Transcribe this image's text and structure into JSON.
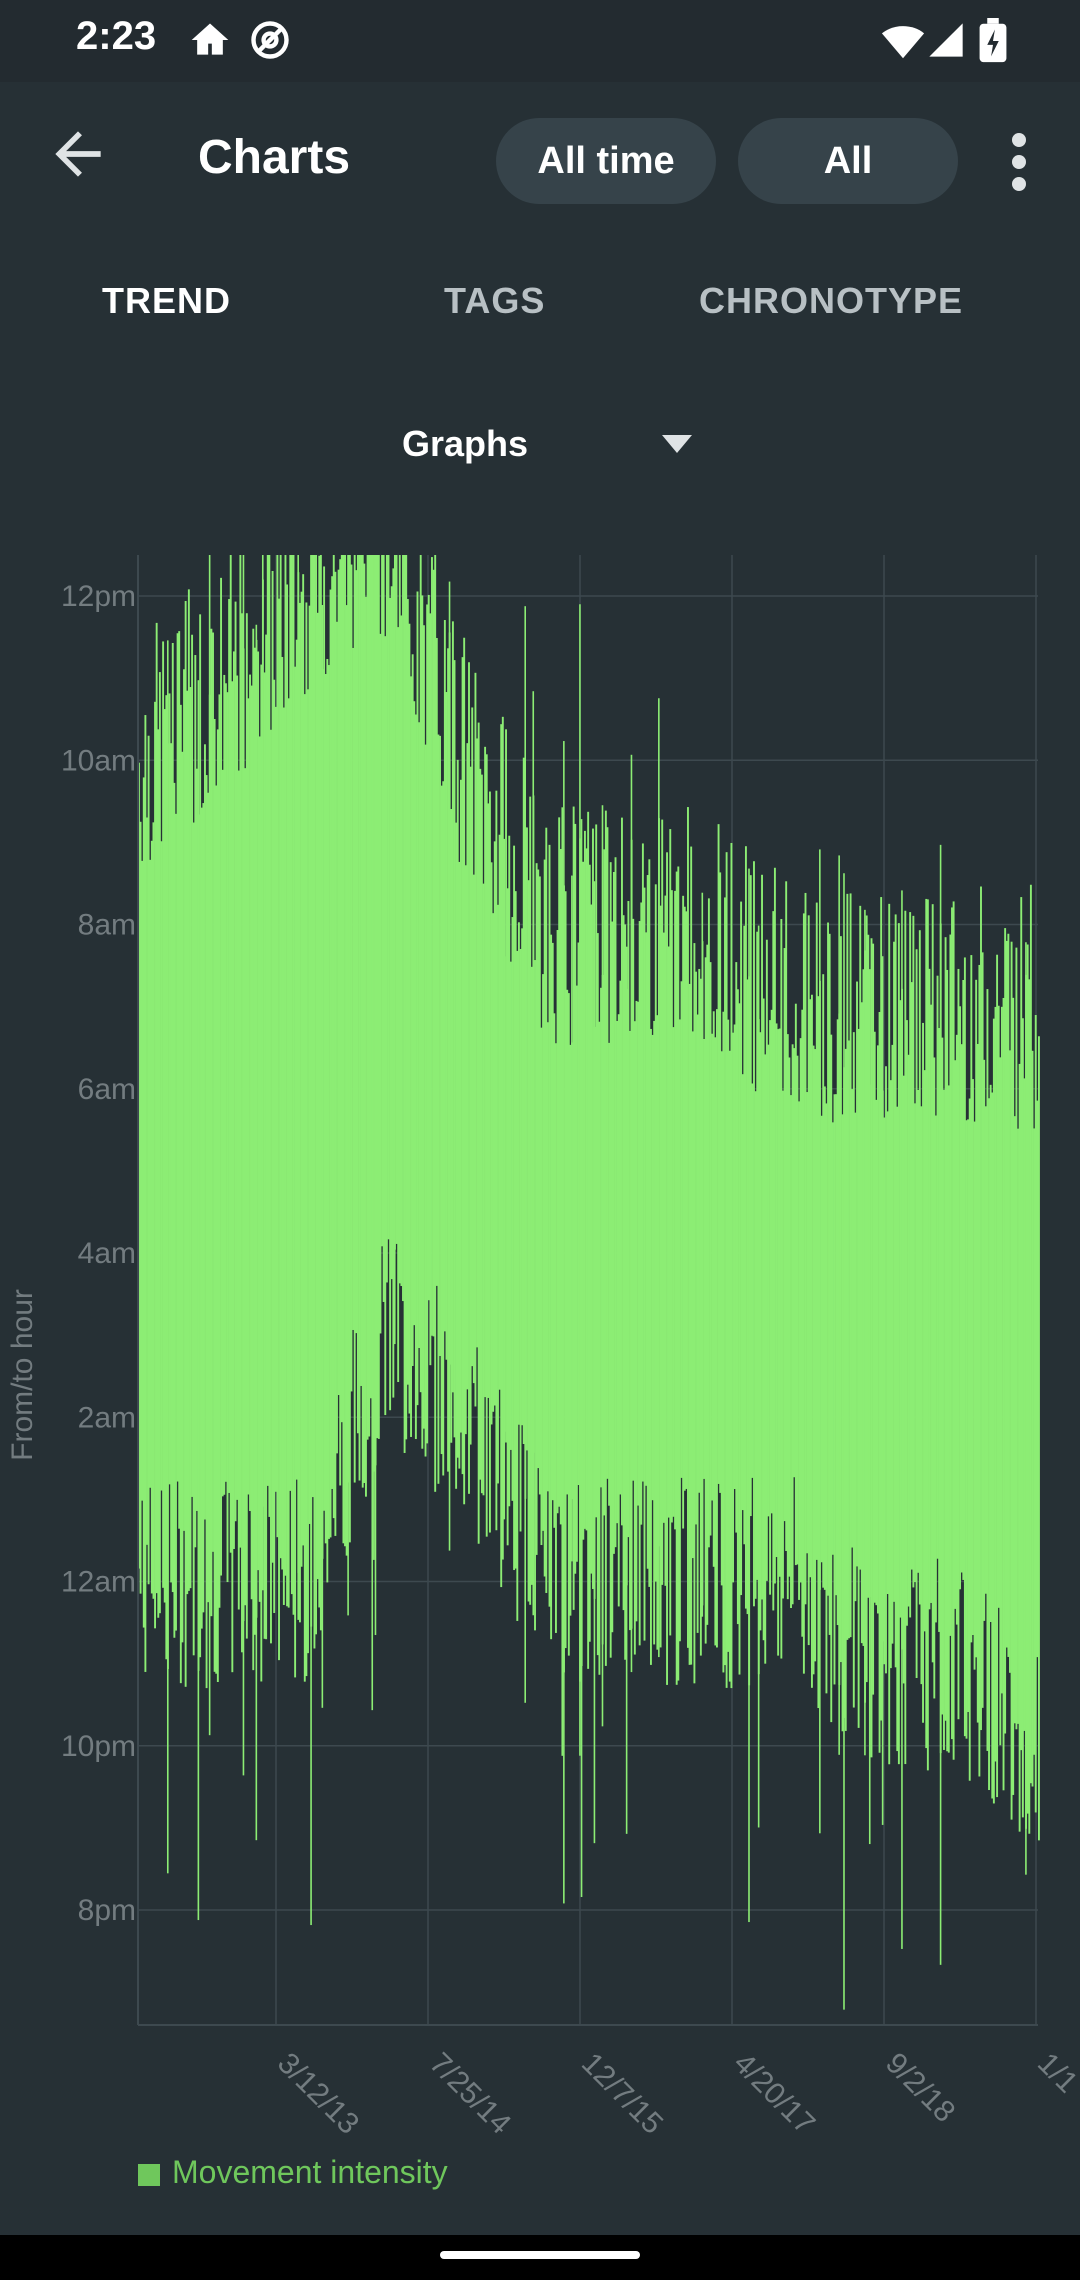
{
  "status": {
    "time": "2:23"
  },
  "appbar": {
    "title": "Charts",
    "range_label": "All time",
    "filter_label": "All"
  },
  "tabs": [
    {
      "label": "TREND",
      "active": true
    },
    {
      "label": "TAGS",
      "active": false
    },
    {
      "label": "CHRONOTYPE",
      "active": false
    }
  ],
  "dropdown": {
    "selected": "Graphs"
  },
  "colors": {
    "background": "#263035",
    "pill": "#36434a",
    "series": "#8ced74",
    "legend_text": "#6fc75c",
    "axis_text": "#737c80",
    "grid": "#3d494f"
  },
  "chart_data": {
    "type": "bar",
    "title": "",
    "ylabel": "From/to hour",
    "xlabel": "",
    "y_tick_labels": [
      "8pm",
      "10pm",
      "12am",
      "2am",
      "4am",
      "6am",
      "8am",
      "10am",
      "12pm"
    ],
    "x_tick_labels": [
      "3/12/13",
      "7/25/14",
      "12/7/15",
      "4/20/17",
      "9/2/18",
      "1/1"
    ],
    "legend": [
      {
        "name": "Movement intensity",
        "color": "#8ced74"
      }
    ],
    "legend_position": "bottom-left",
    "grid": true,
    "series": [
      {
        "name": "Movement intensity",
        "x": [
          "9/2011",
          "6/2012",
          "3/2013",
          "12/2013",
          "9/2014",
          "6/2015",
          "3/2016",
          "12/2016",
          "9/2017",
          "6/2018",
          "3/2019",
          "12/2019"
        ],
        "from": [
          "12am",
          "12am",
          "12am",
          "3am",
          "2am",
          "12am",
          "12am",
          "12am",
          "12am",
          "11pm",
          "11pm",
          "10pm"
        ],
        "to": [
          "10am",
          "11am",
          "12pm",
          "1pm",
          "10am",
          "8am",
          "8am",
          "8am",
          "7am",
          "7am",
          "7am",
          "7am"
        ]
      }
    ]
  }
}
